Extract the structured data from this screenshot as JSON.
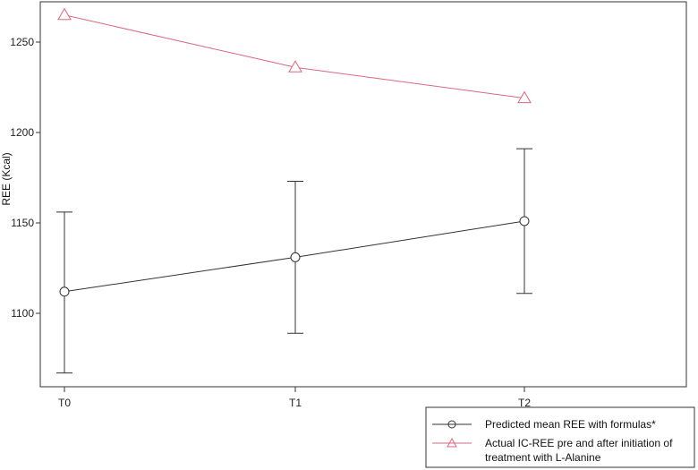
{
  "chart_data": {
    "type": "line",
    "title": "",
    "xlabel": "",
    "ylabel": "REE (Kcal)",
    "categories": [
      "T0",
      "T1",
      "T2"
    ],
    "ylim": [
      1060,
      1275
    ],
    "yticks": [
      1100,
      1150,
      1200,
      1250
    ],
    "grid": false,
    "legend_position": "bottom-right",
    "series": [
      {
        "name": "Predicted mean REE with formulas*",
        "color": "#333333",
        "marker": "circle",
        "values": [
          1112,
          1131,
          1151
        ],
        "error_upper": [
          1156,
          1173,
          1191
        ],
        "error_lower": [
          1067,
          1089,
          1111
        ]
      },
      {
        "name": "Actual IC-REE pre and after initiation of treatment with L-Alanine",
        "legend_lines": [
          "Actual IC-REE pre and after initiation of",
          "treatment with L-Alanine"
        ],
        "color": "#d9687f",
        "marker": "triangle",
        "values": [
          1265,
          1236,
          1219
        ]
      }
    ]
  }
}
